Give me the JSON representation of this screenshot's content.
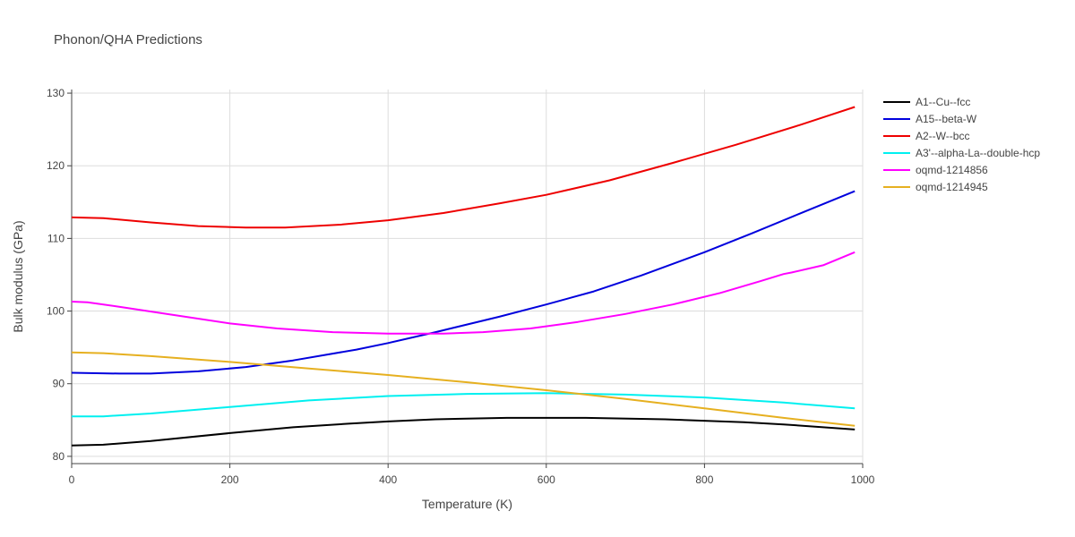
{
  "chart_data": {
    "type": "line",
    "title": "Phonon/QHA Predictions",
    "xlabel": "Temperature (K)",
    "ylabel": "Bulk modulus (GPa)",
    "xlim": [
      0,
      1000
    ],
    "ylim": [
      79,
      130.5
    ],
    "x_ticks": [
      0,
      200,
      400,
      600,
      800,
      1000
    ],
    "y_ticks": [
      80,
      90,
      100,
      110,
      120,
      130
    ],
    "grid": true,
    "legend_position": "right",
    "series": [
      {
        "name": "A1--Cu--fcc",
        "color": "#000000",
        "points": [
          [
            0,
            81.5
          ],
          [
            40,
            81.6
          ],
          [
            100,
            82.1
          ],
          [
            200,
            83.2
          ],
          [
            280,
            84.0
          ],
          [
            350,
            84.5
          ],
          [
            400,
            84.8
          ],
          [
            460,
            85.1
          ],
          [
            550,
            85.3
          ],
          [
            650,
            85.3
          ],
          [
            750,
            85.1
          ],
          [
            850,
            84.7
          ],
          [
            900,
            84.4
          ],
          [
            990,
            83.7
          ]
        ]
      },
      {
        "name": "A15--beta-W",
        "color": "#0000dd",
        "points": [
          [
            0,
            91.5
          ],
          [
            60,
            91.4
          ],
          [
            100,
            91.4
          ],
          [
            160,
            91.7
          ],
          [
            220,
            92.3
          ],
          [
            280,
            93.2
          ],
          [
            360,
            94.7
          ],
          [
            400,
            95.6
          ],
          [
            460,
            97.1
          ],
          [
            540,
            99.2
          ],
          [
            600,
            100.9
          ],
          [
            660,
            102.7
          ],
          [
            720,
            104.9
          ],
          [
            800,
            108.1
          ],
          [
            860,
            110.7
          ],
          [
            920,
            113.4
          ],
          [
            990,
            116.5
          ]
        ]
      },
      {
        "name": "A2--W--bcc",
        "color": "#ee0000",
        "points": [
          [
            0,
            112.9
          ],
          [
            40,
            112.8
          ],
          [
            100,
            112.2
          ],
          [
            160,
            111.7
          ],
          [
            220,
            111.5
          ],
          [
            270,
            111.5
          ],
          [
            340,
            111.9
          ],
          [
            400,
            112.5
          ],
          [
            470,
            113.5
          ],
          [
            540,
            114.8
          ],
          [
            600,
            116.0
          ],
          [
            680,
            118.0
          ],
          [
            760,
            120.4
          ],
          [
            840,
            122.9
          ],
          [
            920,
            125.6
          ],
          [
            990,
            128.1
          ]
        ]
      },
      {
        "name": "A3'--alpha-La--double-hcp",
        "color": "#00f0f0",
        "points": [
          [
            0,
            85.5
          ],
          [
            40,
            85.5
          ],
          [
            100,
            85.9
          ],
          [
            200,
            86.8
          ],
          [
            300,
            87.7
          ],
          [
            400,
            88.3
          ],
          [
            500,
            88.6
          ],
          [
            600,
            88.7
          ],
          [
            700,
            88.5
          ],
          [
            800,
            88.1
          ],
          [
            900,
            87.4
          ],
          [
            990,
            86.6
          ]
        ]
      },
      {
        "name": "oqmd-1214856",
        "color": "#ff00ff",
        "points": [
          [
            0,
            101.3
          ],
          [
            20,
            101.2
          ],
          [
            60,
            100.6
          ],
          [
            120,
            99.6
          ],
          [
            200,
            98.3
          ],
          [
            260,
            97.6
          ],
          [
            330,
            97.1
          ],
          [
            400,
            96.9
          ],
          [
            470,
            96.9
          ],
          [
            520,
            97.1
          ],
          [
            580,
            97.6
          ],
          [
            640,
            98.5
          ],
          [
            700,
            99.6
          ],
          [
            760,
            100.9
          ],
          [
            820,
            102.5
          ],
          [
            870,
            104.1
          ],
          [
            900,
            105.1
          ],
          [
            910,
            105.3
          ],
          [
            950,
            106.3
          ],
          [
            990,
            108.1
          ]
        ]
      },
      {
        "name": "oqmd-1214945",
        "color": "#e6b020",
        "points": [
          [
            0,
            94.3
          ],
          [
            40,
            94.2
          ],
          [
            100,
            93.8
          ],
          [
            200,
            93.0
          ],
          [
            300,
            92.1
          ],
          [
            400,
            91.2
          ],
          [
            500,
            90.2
          ],
          [
            600,
            89.1
          ],
          [
            700,
            87.9
          ],
          [
            800,
            86.6
          ],
          [
            900,
            85.3
          ],
          [
            990,
            84.2
          ]
        ]
      }
    ]
  }
}
